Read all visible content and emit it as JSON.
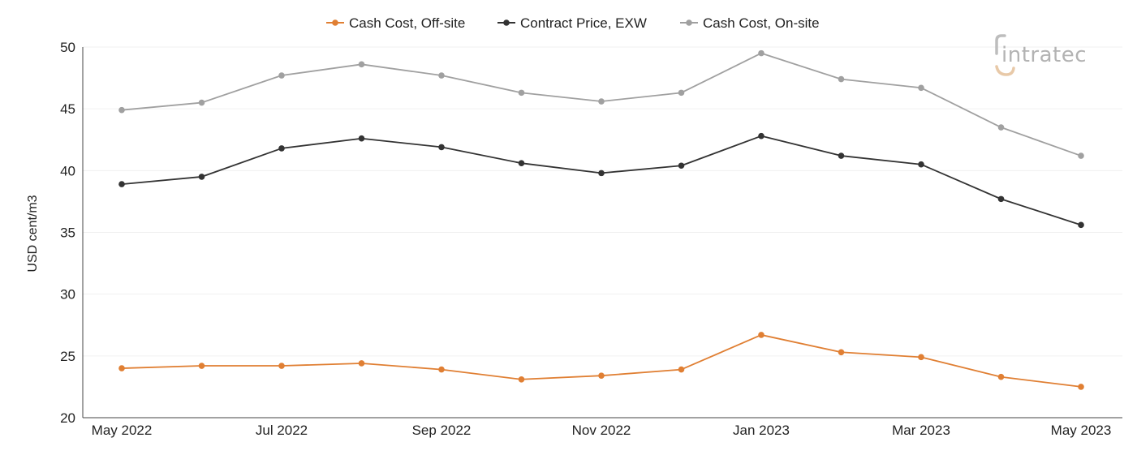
{
  "chart_data": {
    "type": "line",
    "x": [
      "May 2022",
      "Jun 2022",
      "Jul 2022",
      "Aug 2022",
      "Sep 2022",
      "Oct 2022",
      "Nov 2022",
      "Dec 2022",
      "Jan 2023",
      "Feb 2023",
      "Mar 2023",
      "Apr 2023",
      "May 2023"
    ],
    "x_tick_labels": [
      "May 2022",
      "",
      "Jul 2022",
      "",
      "Sep 2022",
      "",
      "Nov 2022",
      "",
      "Jan 2023",
      "",
      "Mar 2023",
      "",
      "May 2023"
    ],
    "ylabel": "USD cent/m3",
    "ylim": [
      20,
      50
    ],
    "yticks": [
      20,
      25,
      30,
      35,
      40,
      45,
      50
    ],
    "grid": true,
    "legend_position": "top-center",
    "series": [
      {
        "name": "Cash Cost, Off-site",
        "color": "#e07f33",
        "values": [
          24.0,
          24.2,
          24.2,
          24.4,
          23.9,
          23.1,
          23.4,
          23.9,
          26.7,
          25.3,
          24.9,
          23.3,
          22.5
        ]
      },
      {
        "name": "Contract Price, EXW",
        "color": "#333333",
        "values": [
          38.9,
          39.5,
          41.8,
          42.6,
          41.9,
          40.6,
          39.8,
          40.4,
          42.8,
          41.2,
          40.5,
          37.7,
          35.6
        ]
      },
      {
        "name": "Cash Cost, On-site",
        "color": "#a0a0a0",
        "values": [
          44.9,
          45.5,
          47.7,
          48.6,
          47.7,
          46.3,
          45.6,
          46.3,
          49.5,
          47.4,
          46.7,
          43.5,
          41.2
        ]
      }
    ]
  },
  "logo": {
    "text": "intratec"
  }
}
